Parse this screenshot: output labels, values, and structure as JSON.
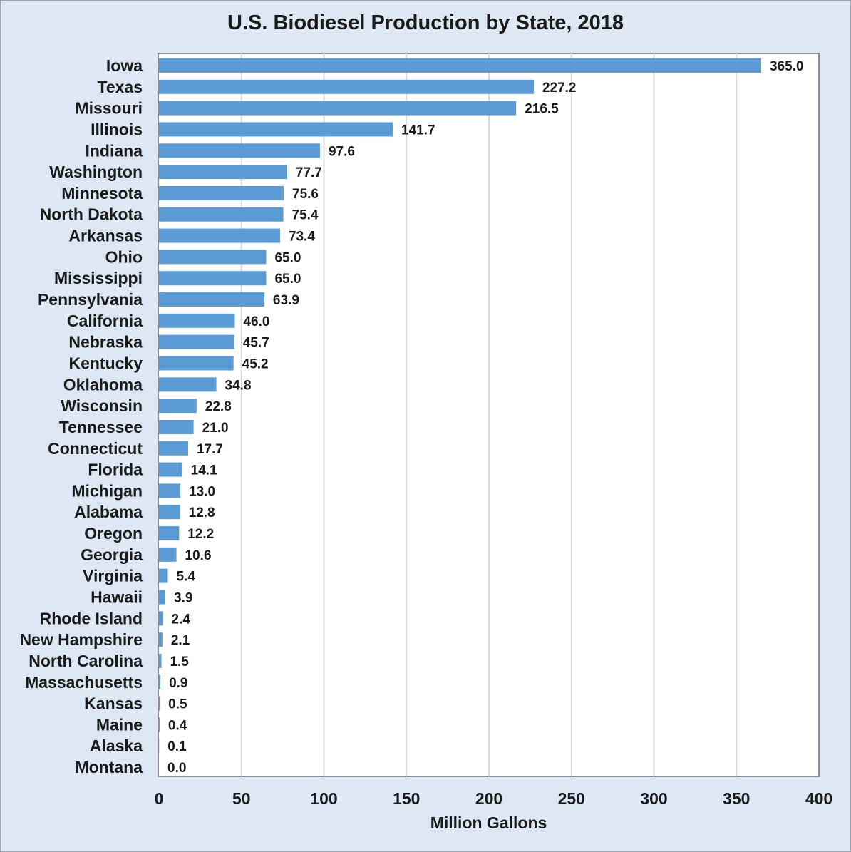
{
  "chart_data": {
    "type": "bar",
    "orientation": "horizontal",
    "title": "U.S. Biodiesel Production by State, 2018",
    "xlabel": "Million Gallons",
    "ylabel": "",
    "xlim": [
      0,
      400
    ],
    "xticks": [
      "0",
      "50",
      "100",
      "150",
      "200",
      "250",
      "300",
      "350",
      "400"
    ],
    "grid": "vertical",
    "legend": "none",
    "bar_color": "#5b9bd5",
    "categories": [
      "Iowa",
      "Texas",
      "Missouri",
      "Illinois",
      "Indiana",
      "Washington",
      "Minnesota",
      "North Dakota",
      "Arkansas",
      "Ohio",
      "Mississippi",
      "Pennsylvania",
      "California",
      "Nebraska",
      "Kentucky",
      "Oklahoma",
      "Wisconsin",
      "Tennessee",
      "Connecticut",
      "Florida",
      "Michigan",
      "Alabama",
      "Oregon",
      "Georgia",
      "Virginia",
      "Hawaii",
      "Rhode Island",
      "New Hampshire",
      "North Carolina",
      "Massachusetts",
      "Kansas",
      "Maine",
      "Alaska",
      "Montana"
    ],
    "values": [
      365.0,
      227.2,
      216.5,
      141.7,
      97.6,
      77.7,
      75.6,
      75.4,
      73.4,
      65.0,
      65.0,
      63.9,
      46.0,
      45.7,
      45.2,
      34.8,
      22.8,
      21.0,
      17.7,
      14.1,
      13.0,
      12.8,
      12.2,
      10.6,
      5.4,
      3.9,
      2.4,
      2.1,
      1.5,
      0.9,
      0.5,
      0.4,
      0.1,
      0.0
    ],
    "value_labels": [
      "365.0",
      "227.2",
      "216.5",
      "141.7",
      "97.6",
      "77.7",
      "75.6",
      "75.4",
      "73.4",
      "65.0",
      "65.0",
      "63.9",
      "46.0",
      "45.7",
      "45.2",
      "34.8",
      "22.8",
      "21.0",
      "17.7",
      "14.1",
      "13.0",
      "12.8",
      "12.2",
      "10.6",
      "5.4",
      "3.9",
      "2.4",
      "2.1",
      "1.5",
      "0.9",
      "0.5",
      "0.4",
      "0.1",
      "0.0"
    ]
  }
}
